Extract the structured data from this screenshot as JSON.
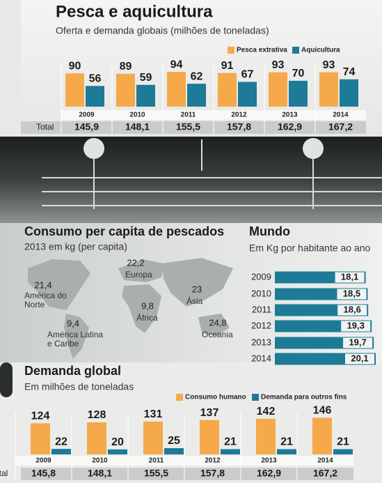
{
  "chart_data": [
    {
      "type": "bar",
      "title": "Pesca e aquicultura",
      "subtitle": "Oferta e demanda globais (milhões de toneladas)",
      "categories": [
        "2009",
        "2010",
        "2011",
        "2012",
        "2013",
        "2014"
      ],
      "series": [
        {
          "name": "Pesca extrativa",
          "color": "#f5a94a",
          "values": [
            90,
            89,
            94,
            91,
            93,
            93
          ]
        },
        {
          "name": "Aquicultura",
          "color": "#1d7b98",
          "values": [
            56,
            59,
            62,
            67,
            70,
            74
          ]
        }
      ],
      "totals": {
        "label": "Total",
        "values": [
          145.9,
          148.1,
          155.5,
          157.8,
          162.9,
          167.2
        ],
        "value_labels": [
          "145,9",
          "148,1",
          "155,5",
          "157,8",
          "162,9",
          "167,2"
        ]
      }
    },
    {
      "type": "map",
      "title": "Consumo per capita de pescados",
      "subtitle": "2013 em kg (per capita)",
      "categories": [
        "América do Norte",
        "Europa",
        "Ásia",
        "África",
        "América Latina e Caribe",
        "Oceania"
      ],
      "values": [
        21.4,
        22.2,
        23,
        9.8,
        9.4,
        24.8
      ],
      "value_labels": [
        "21,4",
        "22,2",
        "23",
        "9,8",
        "9,4",
        "24,8"
      ]
    },
    {
      "type": "hbar",
      "title": "Mundo",
      "subtitle": "Em Kg por habitante ao ano",
      "color": "#1d7b98",
      "categories": [
        "2009",
        "2010",
        "2011",
        "2012",
        "2013",
        "2014"
      ],
      "values": [
        18.1,
        18.5,
        18.6,
        19.3,
        19.7,
        20.1
      ],
      "value_labels": [
        "18,1",
        "18,5",
        "18,6",
        "19,3",
        "19,7",
        "20,1"
      ]
    },
    {
      "type": "bar",
      "title": "Demanda global",
      "subtitle": "Em milhões de toneladas",
      "categories": [
        "2009",
        "2010",
        "2011",
        "2012",
        "2013",
        "2014"
      ],
      "series": [
        {
          "name": "Consumo humano",
          "color": "#f5a94a",
          "values": [
            124,
            128,
            131,
            137,
            142,
            146
          ]
        },
        {
          "name": "Demanda para outros fins",
          "color": "#1d7b98",
          "values": [
            22,
            20,
            25,
            21,
            21,
            21
          ]
        }
      ],
      "totals": {
        "label": "Total",
        "values": [
          145.8,
          148.1,
          155.5,
          157.8,
          162.9,
          167.2
        ],
        "value_labels": [
          "145,8",
          "148,1",
          "155,5",
          "157,8",
          "162,9",
          "167,2"
        ]
      }
    }
  ]
}
